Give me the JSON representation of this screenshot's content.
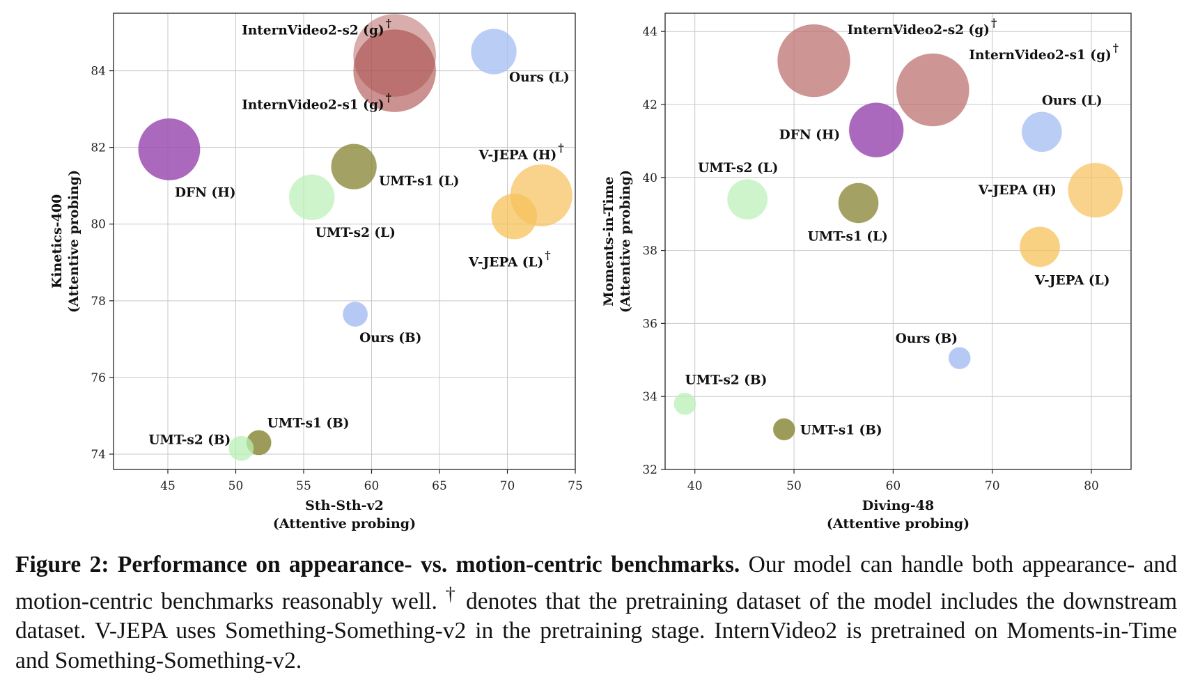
{
  "caption": {
    "figure_label": "Figure 2:",
    "bold_title": "Performance on appearance- vs. motion-centric benchmarks.",
    "text_part1": "Our model can handle both appearance- and motion-centric benchmarks reasonably well.",
    "dagger": "†",
    "text_part2": "denotes that the pretraining dataset of the model includes the downstream dataset. V-JEPA uses Something-Something-v2 in the pretraining stage. InternVideo2 is pretrained on Moments-in-Time and Something-Something-v2."
  },
  "colors": {
    "purple": "#9b4fb0",
    "olive": "#8c8a3c",
    "green": "#b8f0b4",
    "blue": "#a9c0f3",
    "orange": "#f6c15a",
    "brown": "#b86a66",
    "brown_dark": "#a84a48"
  },
  "chart_data": [
    {
      "type": "scatter",
      "title": "",
      "xlabel": "Sth-Sth-v2",
      "xlabel2": "(Attentive probing)",
      "ylabel": "Kinetics-400",
      "ylabel2": "(Attentive probing)",
      "xlim": [
        41,
        75
      ],
      "ylim": [
        73.6,
        85.5
      ],
      "xticks": [
        45,
        50,
        55,
        60,
        65,
        70,
        75
      ],
      "yticks": [
        74,
        76,
        78,
        80,
        82,
        84
      ],
      "grid": true,
      "points": [
        {
          "label": "InternVideo2-s2 (g)",
          "dagger": true,
          "x": 61.7,
          "y": 84.4,
          "size": 1.0,
          "color": "brown",
          "alpha": 0.55
        },
        {
          "label": "InternVideo2-s1 (g)",
          "dagger": true,
          "x": 61.7,
          "y": 84.0,
          "size": 1.0,
          "color": "brown_dark",
          "alpha": 0.6
        },
        {
          "label": "Ours (L)",
          "dagger": false,
          "x": 69.0,
          "y": 84.5,
          "size": 0.55,
          "color": "blue",
          "alpha": 0.8
        },
        {
          "label": "DFN (H)",
          "dagger": false,
          "x": 45.1,
          "y": 81.95,
          "size": 0.75,
          "color": "purple",
          "alpha": 0.85
        },
        {
          "label": "UMT-s1 (L)",
          "dagger": false,
          "x": 58.7,
          "y": 81.5,
          "size": 0.55,
          "color": "olive",
          "alpha": 0.8
        },
        {
          "label": "UMT-s2 (L)",
          "dagger": false,
          "x": 55.6,
          "y": 80.7,
          "size": 0.55,
          "color": "green",
          "alpha": 0.7
        },
        {
          "label": "V-JEPA (H)",
          "dagger": true,
          "x": 72.5,
          "y": 80.75,
          "size": 0.75,
          "color": "orange",
          "alpha": 0.7
        },
        {
          "label": "V-JEPA (L)",
          "dagger": true,
          "x": 70.5,
          "y": 80.2,
          "size": 0.55,
          "color": "orange",
          "alpha": 0.75
        },
        {
          "label": "Ours (B)",
          "dagger": false,
          "x": 58.8,
          "y": 77.65,
          "size": 0.3,
          "color": "blue",
          "alpha": 0.85
        },
        {
          "label": "UMT-s1 (B)",
          "dagger": false,
          "x": 51.7,
          "y": 74.3,
          "size": 0.3,
          "color": "olive",
          "alpha": 0.85
        },
        {
          "label": "UMT-s2 (B)",
          "dagger": false,
          "x": 50.4,
          "y": 74.15,
          "size": 0.3,
          "color": "green",
          "alpha": 0.75
        }
      ]
    },
    {
      "type": "scatter",
      "title": "",
      "xlabel": "Diving-48",
      "xlabel2": "(Attentive probing)",
      "ylabel": "Moments-in-Time",
      "ylabel2": "(Attentive probing)",
      "xlim": [
        37,
        84
      ],
      "ylim": [
        32,
        44.5
      ],
      "xticks": [
        40,
        50,
        60,
        70,
        80
      ],
      "yticks": [
        32,
        34,
        36,
        38,
        40,
        42,
        44
      ],
      "grid": true,
      "points": [
        {
          "label": "InternVideo2-s2 (g)",
          "dagger": true,
          "x": 52.0,
          "y": 43.2,
          "size": 1.0,
          "color": "brown",
          "alpha": 0.7
        },
        {
          "label": "InternVideo2-s1 (g)",
          "dagger": true,
          "x": 64.0,
          "y": 42.4,
          "size": 1.0,
          "color": "brown",
          "alpha": 0.7
        },
        {
          "label": "DFN (H)",
          "dagger": false,
          "x": 58.3,
          "y": 41.3,
          "size": 0.75,
          "color": "purple",
          "alpha": 0.85
        },
        {
          "label": "Ours (L)",
          "dagger": false,
          "x": 75.0,
          "y": 41.25,
          "size": 0.55,
          "color": "blue",
          "alpha": 0.8
        },
        {
          "label": "V-JEPA (H)",
          "dagger": false,
          "x": 80.4,
          "y": 39.65,
          "size": 0.75,
          "color": "orange",
          "alpha": 0.7
        },
        {
          "label": "UMT-s2 (L)",
          "dagger": false,
          "x": 45.3,
          "y": 39.4,
          "size": 0.55,
          "color": "green",
          "alpha": 0.7
        },
        {
          "label": "UMT-s1 (L)",
          "dagger": false,
          "x": 56.5,
          "y": 39.3,
          "size": 0.55,
          "color": "olive",
          "alpha": 0.8
        },
        {
          "label": "V-JEPA (L)",
          "dagger": false,
          "x": 74.8,
          "y": 38.1,
          "size": 0.55,
          "color": "orange",
          "alpha": 0.75
        },
        {
          "label": "Ours (B)",
          "dagger": false,
          "x": 66.7,
          "y": 35.05,
          "size": 0.3,
          "color": "blue",
          "alpha": 0.85
        },
        {
          "label": "UMT-s2 (B)",
          "dagger": false,
          "x": 39.0,
          "y": 33.8,
          "size": 0.3,
          "color": "green",
          "alpha": 0.75
        },
        {
          "label": "UMT-s1 (B)",
          "dagger": false,
          "x": 49.0,
          "y": 33.1,
          "size": 0.3,
          "color": "olive",
          "alpha": 0.85
        }
      ]
    }
  ]
}
